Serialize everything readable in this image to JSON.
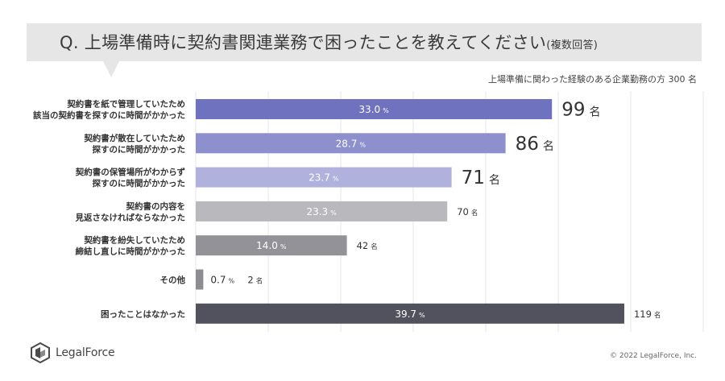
{
  "header": {
    "question": "Q. 上場準備時に契約書関連業務で困ったことを教えてください",
    "question_note": "(複数回答)",
    "respondents": "上場準備に関わった経験のある企業勤務の方 300 名"
  },
  "chart_data": {
    "type": "bar",
    "orientation": "horizontal",
    "count_unit": "名",
    "percent_unit": "%",
    "xlim": [
      0,
      40
    ],
    "categories": [
      [
        "契約書を紙で管理していたため",
        "該当の契約書を探すのに時間がかかった"
      ],
      [
        "契約書が散在していたため",
        "探すのに時間がかかった"
      ],
      [
        "契約書の保管場所がわからず",
        "探すのに時間がかかった"
      ],
      [
        "契約書の内容を",
        "見返さなければならなかった"
      ],
      [
        "契約書を紛失していたため",
        "締結し直しに時間がかかった"
      ],
      [
        "その他"
      ],
      [
        "困ったことはなかった"
      ]
    ],
    "percent_labels": [
      "33.0",
      "28.7",
      "23.7",
      "23.3",
      "14.0",
      "0.7",
      "39.7"
    ],
    "percent_values": [
      33.0,
      28.7,
      23.7,
      23.3,
      14.0,
      0.7,
      39.7
    ],
    "count_labels": [
      "99",
      "86",
      "71",
      "70",
      "42",
      "2",
      "119"
    ],
    "colors": [
      "#6f72be",
      "#8e90cd",
      "#b0b1dd",
      "#b9b9bd",
      "#939397",
      "#8d8d91",
      "#52525e"
    ]
  },
  "footer": {
    "logo_text": "LegalForce",
    "copyright": "© 2022 LegalForce, Inc."
  }
}
